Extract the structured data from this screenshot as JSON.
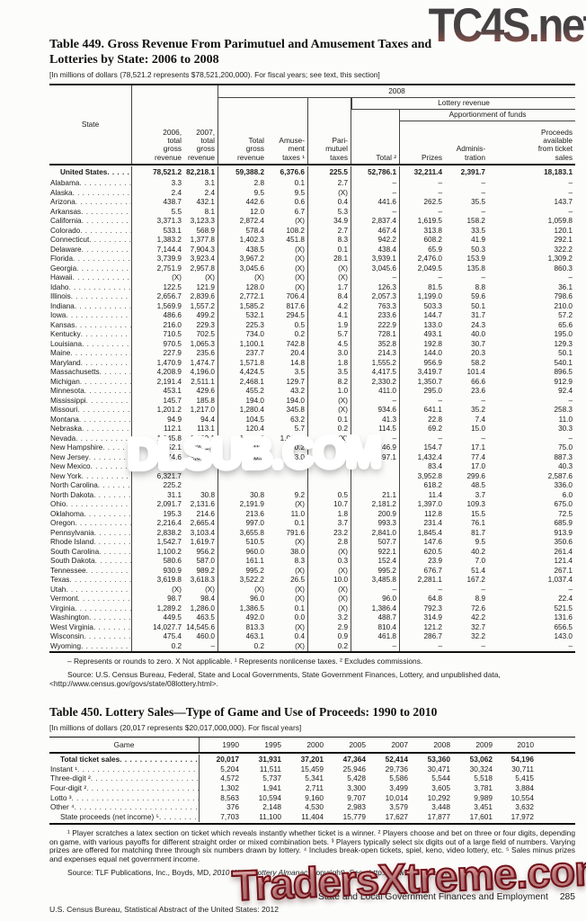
{
  "watermarks": {
    "top": "TC4S.net",
    "middle": "DLSUB.COM",
    "bottom": "TradersXtreme.com",
    "top_color": "#474243",
    "middle_color": "#c01920",
    "bottom_color": "#c94b52"
  },
  "table449": {
    "title_line1": "Table 449. Gross Revenue From Parimutuel and Amusement Taxes and",
    "title_line2": "Lotteries by State: 2006 to 2008",
    "subtitle": "[In millions of dollars (78,521.2 represents $78,521,200,000). For fiscal years; see text, this section]",
    "headers": {
      "state": "State",
      "y2006": "2006,\ntotal\ngross\nrevenue",
      "y2007": "2007,\ntotal\ngross\nrevenue",
      "y2008": "2008",
      "lottery": "Lottery revenue",
      "apportionment": "Apportionment of funds",
      "total_gross": "Total\ngross\nrevenue",
      "amusement": "Amuse-\nment\ntaxes ¹",
      "parimutuel": "Pari-\nmutuel\ntaxes",
      "total2": "Total ²",
      "prizes": "Prizes",
      "administration": "Adminis-\ntration",
      "proceeds": "Proceeds\navailable\nfrom ticket\nsales"
    },
    "rows": [
      {
        "label": "United States",
        "cls": "us",
        "cells": [
          "78,521.2",
          "82,218.1",
          "59,388.2",
          "6,376.6",
          "225.5",
          "52,786.1",
          "32,211.4",
          "2,391.7",
          "18,183.1"
        ]
      },
      {
        "label": "Alabama",
        "cells": [
          "3.3",
          "3.1",
          "2.8",
          "0.1",
          "2.7",
          "–",
          "–",
          "–",
          "–"
        ]
      },
      {
        "label": "Alaska",
        "cells": [
          "2.4",
          "2.4",
          "9.5",
          "9.5",
          "(X)",
          "–",
          "–",
          "–",
          "–"
        ]
      },
      {
        "label": "Arizona",
        "cells": [
          "438.7",
          "432.1",
          "442.6",
          "0.6",
          "0.4",
          "441.6",
          "262.5",
          "35.5",
          "143.7"
        ]
      },
      {
        "label": "Arkansas",
        "cells": [
          "5.5",
          "8.1",
          "12.0",
          "6.7",
          "5.3",
          "–",
          "–",
          "–",
          "–"
        ]
      },
      {
        "label": "California",
        "cells": [
          "3,371.3",
          "3,123.3",
          "2,872.4",
          "(X)",
          "34.9",
          "2,837.4",
          "1,619.5",
          "158.2",
          "1,059.8"
        ]
      },
      {
        "label": "Colorado",
        "cells": [
          "533.1",
          "568.9",
          "578.4",
          "108.2",
          "2.7",
          "467.4",
          "313.8",
          "33.5",
          "120.1"
        ]
      },
      {
        "label": "Connecticut",
        "cells": [
          "1,383.2",
          "1,377.8",
          "1,402.3",
          "451.8",
          "8.3",
          "942.2",
          "608.2",
          "41.9",
          "292.1"
        ]
      },
      {
        "label": "Delaware",
        "cells": [
          "7,144.4",
          "7,904.3",
          "438.5",
          "(X)",
          "0.1",
          "438.4",
          "65.9",
          "50.3",
          "322.2"
        ]
      },
      {
        "label": "Florida",
        "cells": [
          "3,739.9",
          "3,923.4",
          "3,967.2",
          "(X)",
          "28.1",
          "3,939.1",
          "2,476.0",
          "153.9",
          "1,309.2"
        ]
      },
      {
        "label": "Georgia",
        "cells": [
          "2,751.9",
          "2,957.8",
          "3,045.6",
          "(X)",
          "(X)",
          "3,045.6",
          "2,049.5",
          "135.8",
          "860.3"
        ]
      },
      {
        "label": "Hawaii",
        "cells": [
          "(X)",
          "(X)",
          "(X)",
          "(X)",
          "(X)",
          "–",
          "–",
          "–",
          "–"
        ]
      },
      {
        "label": "Idaho",
        "cells": [
          "122.5",
          "121.9",
          "128.0",
          "(X)",
          "1.7",
          "126.3",
          "81.5",
          "8.8",
          "36.1"
        ]
      },
      {
        "label": "Illinois",
        "cells": [
          "2,656.7",
          "2,839.6",
          "2,772.1",
          "706.4",
          "8.4",
          "2,057.3",
          "1,199.0",
          "59.6",
          "798.6"
        ]
      },
      {
        "label": "Indiana",
        "cells": [
          "1,569.9",
          "1,557.2",
          "1,585.2",
          "817.6",
          "4.2",
          "763.3",
          "503.3",
          "50.1",
          "210.0"
        ]
      },
      {
        "label": "Iowa",
        "cells": [
          "486.6",
          "499.2",
          "532.1",
          "294.5",
          "4.1",
          "233.6",
          "144.7",
          "31.7",
          "57.2"
        ]
      },
      {
        "label": "Kansas",
        "cells": [
          "216.0",
          "229.3",
          "225.3",
          "0.5",
          "1.9",
          "222.9",
          "133.0",
          "24.3",
          "65.6"
        ]
      },
      {
        "label": "Kentucky",
        "cells": [
          "710.5",
          "702.5",
          "734.0",
          "0.2",
          "5.7",
          "728.1",
          "493.1",
          "40.0",
          "195.0"
        ]
      },
      {
        "label": "Louisiana",
        "cells": [
          "970.5",
          "1,065.3",
          "1,100.1",
          "742.8",
          "4.5",
          "352.8",
          "192.8",
          "30.7",
          "129.3"
        ]
      },
      {
        "label": "Maine",
        "cells": [
          "227.9",
          "235.6",
          "237.7",
          "20.4",
          "3.0",
          "214.3",
          "144.0",
          "20.3",
          "50.1"
        ]
      },
      {
        "label": "Maryland",
        "cells": [
          "1,470.9",
          "1,474.7",
          "1,571.8",
          "14.8",
          "1.8",
          "1,555.2",
          "956.9",
          "58.2",
          "540.1"
        ]
      },
      {
        "label": "Massachusetts",
        "cells": [
          "4,208.9",
          "4,196.0",
          "4,424.5",
          "3.5",
          "3.5",
          "4,417.5",
          "3,419.7",
          "101.4",
          "896.5"
        ]
      },
      {
        "label": "Michigan",
        "cells": [
          "2,191.4",
          "2,511.1",
          "2,468.1",
          "129.7",
          "8.2",
          "2,330.2",
          "1,350.7",
          "66.6",
          "912.9"
        ]
      },
      {
        "label": "Minnesota",
        "cells": [
          "453.1",
          "429.6",
          "455.2",
          "43.2",
          "1.0",
          "411.0",
          "295.0",
          "23.6",
          "92.4"
        ]
      },
      {
        "label": "Mississippi",
        "cells": [
          "145.7",
          "185.8",
          "194.0",
          "194.0",
          "(X)",
          "–",
          "–",
          "–",
          "–"
        ]
      },
      {
        "label": "Missouri",
        "cells": [
          "1,201.2",
          "1,217.0",
          "1,280.4",
          "345.8",
          "(X)",
          "934.6",
          "641.1",
          "35.2",
          "258.3"
        ]
      },
      {
        "label": "Montana",
        "cells": [
          "94.9",
          "94.4",
          "104.5",
          "63.2",
          "0.1",
          "41.3",
          "22.8",
          "7.4",
          "11.0"
        ]
      },
      {
        "label": "Nebraska",
        "cells": [
          "112.1",
          "113.1",
          "120.4",
          "5.7",
          "0.2",
          "114.5",
          "69.2",
          "15.0",
          "30.3"
        ]
      },
      {
        "label": "Nevada",
        "cells": [
          "1,045.8",
          "1,089.1",
          "1,047.8",
          "1,047.8",
          "(X)",
          "–",
          "–",
          "–",
          "–"
        ]
      },
      {
        "label": "New Hampshire",
        "cells": [
          "252.1",
          "253.0",
          "250.0",
          "0.2",
          "2.9",
          "246.9",
          "154.7",
          "17.1",
          "75.0"
        ]
      },
      {
        "label": "New Jersey",
        "cells": [
          "2,774.6",
          "2,669.8",
          "2,810.1",
          "413.0",
          "(X)",
          "2,397.1",
          "1,432.4",
          "77.4",
          "887.3"
        ]
      },
      {
        "label": "New Mexico",
        "cells": [
          "201.7",
          "",
          "",
          "",
          "",
          "",
          "83.4",
          "17.0",
          "40.3"
        ]
      },
      {
        "label": "New York",
        "cells": [
          "6,321.7",
          "",
          "",
          "",
          "",
          "",
          "3,952.8",
          "299.6",
          "2,587.6"
        ]
      },
      {
        "label": "North Carolina",
        "cells": [
          "225.2",
          "",
          "",
          "",
          "",
          "",
          "618.2",
          "48.5",
          "336.0"
        ]
      },
      {
        "label": "North Dakota",
        "cells": [
          "31.1",
          "30.8",
          "30.8",
          "9.2",
          "0.5",
          "21.1",
          "11.4",
          "3.7",
          "6.0"
        ]
      },
      {
        "label": "Ohio",
        "cells": [
          "2,091.7",
          "2,131.6",
          "2,191.9",
          "(X)",
          "10.7",
          "2,181.2",
          "1,397.0",
          "109.3",
          "675.0"
        ]
      },
      {
        "label": "Oklahoma",
        "cells": [
          "195.3",
          "214.6",
          "213.6",
          "11.0",
          "1.8",
          "200.9",
          "112.8",
          "15.5",
          "72.5"
        ]
      },
      {
        "label": "Oregon",
        "cells": [
          "2,216.4",
          "2,665.4",
          "997.0",
          "0.1",
          "3.7",
          "993.3",
          "231.4",
          "76.1",
          "685.9"
        ]
      },
      {
        "label": "Pennsylvania",
        "cells": [
          "2,838.2",
          "3,103.4",
          "3,655.8",
          "791.6",
          "23.2",
          "2,841.0",
          "1,845.4",
          "81.7",
          "913.9"
        ]
      },
      {
        "label": "Rhode Island",
        "cells": [
          "1,542.7",
          "1,619.7",
          "510.5",
          "(X)",
          "2.8",
          "507.7",
          "147.6",
          "9.5",
          "350.6"
        ]
      },
      {
        "label": "South Carolina",
        "cells": [
          "1,100.2",
          "956.2",
          "960.0",
          "38.0",
          "(X)",
          "922.1",
          "620.5",
          "40.2",
          "261.4"
        ]
      },
      {
        "label": "South Dakota",
        "cells": [
          "580.6",
          "587.0",
          "161.1",
          "8.3",
          "0.3",
          "152.4",
          "23.9",
          "7.0",
          "121.4"
        ]
      },
      {
        "label": "Tennessee",
        "cells": [
          "930.9",
          "989.2",
          "995.2",
          "(X)",
          "(X)",
          "995.2",
          "676.7",
          "51.4",
          "267.1"
        ]
      },
      {
        "label": "Texas",
        "cells": [
          "3,619.8",
          "3,618.3",
          "3,522.2",
          "26.5",
          "10.0",
          "3,485.8",
          "2,281.1",
          "167.2",
          "1,037.4"
        ]
      },
      {
        "label": "Utah",
        "cells": [
          "(X)",
          "(X)",
          "(X)",
          "(X)",
          "(X)",
          "–",
          "–",
          "–",
          "–"
        ]
      },
      {
        "label": "Vermont",
        "cells": [
          "98.7",
          "98.4",
          "96.0",
          "(X)",
          "(X)",
          "96.0",
          "64.8",
          "8.9",
          "22.4"
        ]
      },
      {
        "label": "Virginia",
        "cells": [
          "1,289.2",
          "1,286.0",
          "1,386.5",
          "0.1",
          "(X)",
          "1,386.4",
          "792.3",
          "72.6",
          "521.5"
        ]
      },
      {
        "label": "Washington",
        "cells": [
          "449.5",
          "463.5",
          "492.0",
          "0.0",
          "3.2",
          "488.7",
          "314.9",
          "42.2",
          "131.6"
        ]
      },
      {
        "label": "West Virginia",
        "cells": [
          "14,027.7",
          "14,545.6",
          "813.3",
          "(X)",
          "2.9",
          "810.4",
          "121.2",
          "32.7",
          "656.5"
        ]
      },
      {
        "label": "Wisconsin",
        "cells": [
          "475.4",
          "460.0",
          "463.1",
          "0.4",
          "0.9",
          "461.8",
          "286.7",
          "32.2",
          "143.0"
        ]
      },
      {
        "label": "Wyoming",
        "cells": [
          "0.2",
          "–",
          "0.2",
          "(X)",
          "0.2",
          "–",
          "–",
          "–",
          "–"
        ]
      }
    ],
    "notes": "– Represents or rounds to zero. X Not applicable. ¹ Represents nonlicense taxes. ² Excludes commissions.",
    "source": "Source: U.S. Census Bureau, Federal, State and Local Governments, State Government Finances, Lottery, and unpublished data, <http://www.census.gov/govs/state/08lottery.html>."
  },
  "table450": {
    "title": "Table 450. Lottery Sales—Type of Game and Use of Proceeds: 1990 to 2010",
    "subtitle": "[In millions of dollars (20,017 represents $20,017,000,000). For fiscal years]",
    "headers": [
      "Game",
      "1990",
      "1995",
      "2000",
      "2005",
      "2007",
      "2008",
      "2009",
      "2010"
    ],
    "rows": [
      {
        "label": "Total ticket sales",
        "cls": "bold indent",
        "cells": [
          "20,017",
          "31,931",
          "37,201",
          "47,364",
          "52,414",
          "53,360",
          "53,062",
          "54,196"
        ]
      },
      {
        "label": "Instant ¹",
        "cells": [
          "5,204",
          "11,511",
          "15,459",
          "25,946",
          "29,736",
          "30,471",
          "30,324",
          "30,711"
        ]
      },
      {
        "label": "Three-digit ²",
        "cells": [
          "4,572",
          "5,737",
          "5,341",
          "5,428",
          "5,586",
          "5,544",
          "5,518",
          "5,415"
        ]
      },
      {
        "label": "Four-digit ²",
        "cells": [
          "1,302",
          "1,941",
          "2,711",
          "3,300",
          "3,499",
          "3,605",
          "3,781",
          "3,884"
        ]
      },
      {
        "label": "Lotto ³",
        "cells": [
          "8,563",
          "10,594",
          "9,160",
          "9,707",
          "10,014",
          "10,292",
          "9,989",
          "10,554"
        ]
      },
      {
        "label": "Other ⁴",
        "cells": [
          "376",
          "2,148",
          "4,530",
          "2,983",
          "3,579",
          "3,448",
          "3,451",
          "3,632"
        ]
      },
      {
        "label": "State proceeds (net income) ⁵",
        "cls": "indent",
        "cells": [
          "7,703",
          "11,100",
          "11,404",
          "15,779",
          "17,627",
          "17,877",
          "17,601",
          "17,972"
        ]
      }
    ],
    "notes": "¹ Player scratches a latex section on ticket which reveals instantly whether ticket is a winner. ² Players choose and bet on three or four digits, depending on game, with various payoffs for different straight order or mixed combination bets. ³ Players typically select six digits out of a large field of numbers. Varying prizes are offered for matching three through six numbers drawn by lottery. ⁴ Includes break-open tickets, spiel, keno, video lottery, etc. ⁵ Sales minus prizes and expenses equal net government income.",
    "source_pre": "Source: TLF Publications, Inc., Boyds, MD, ",
    "source_italic": "2010 World Lottery Almanac",
    "source_post": " (copyright). See <http://www.lafleurs.com>."
  },
  "footer": {
    "section": "State and Local Government Finances and Employment",
    "page": "285",
    "credit": "U.S. Census Bureau, Statistical Abstract of the United States: 2012"
  }
}
